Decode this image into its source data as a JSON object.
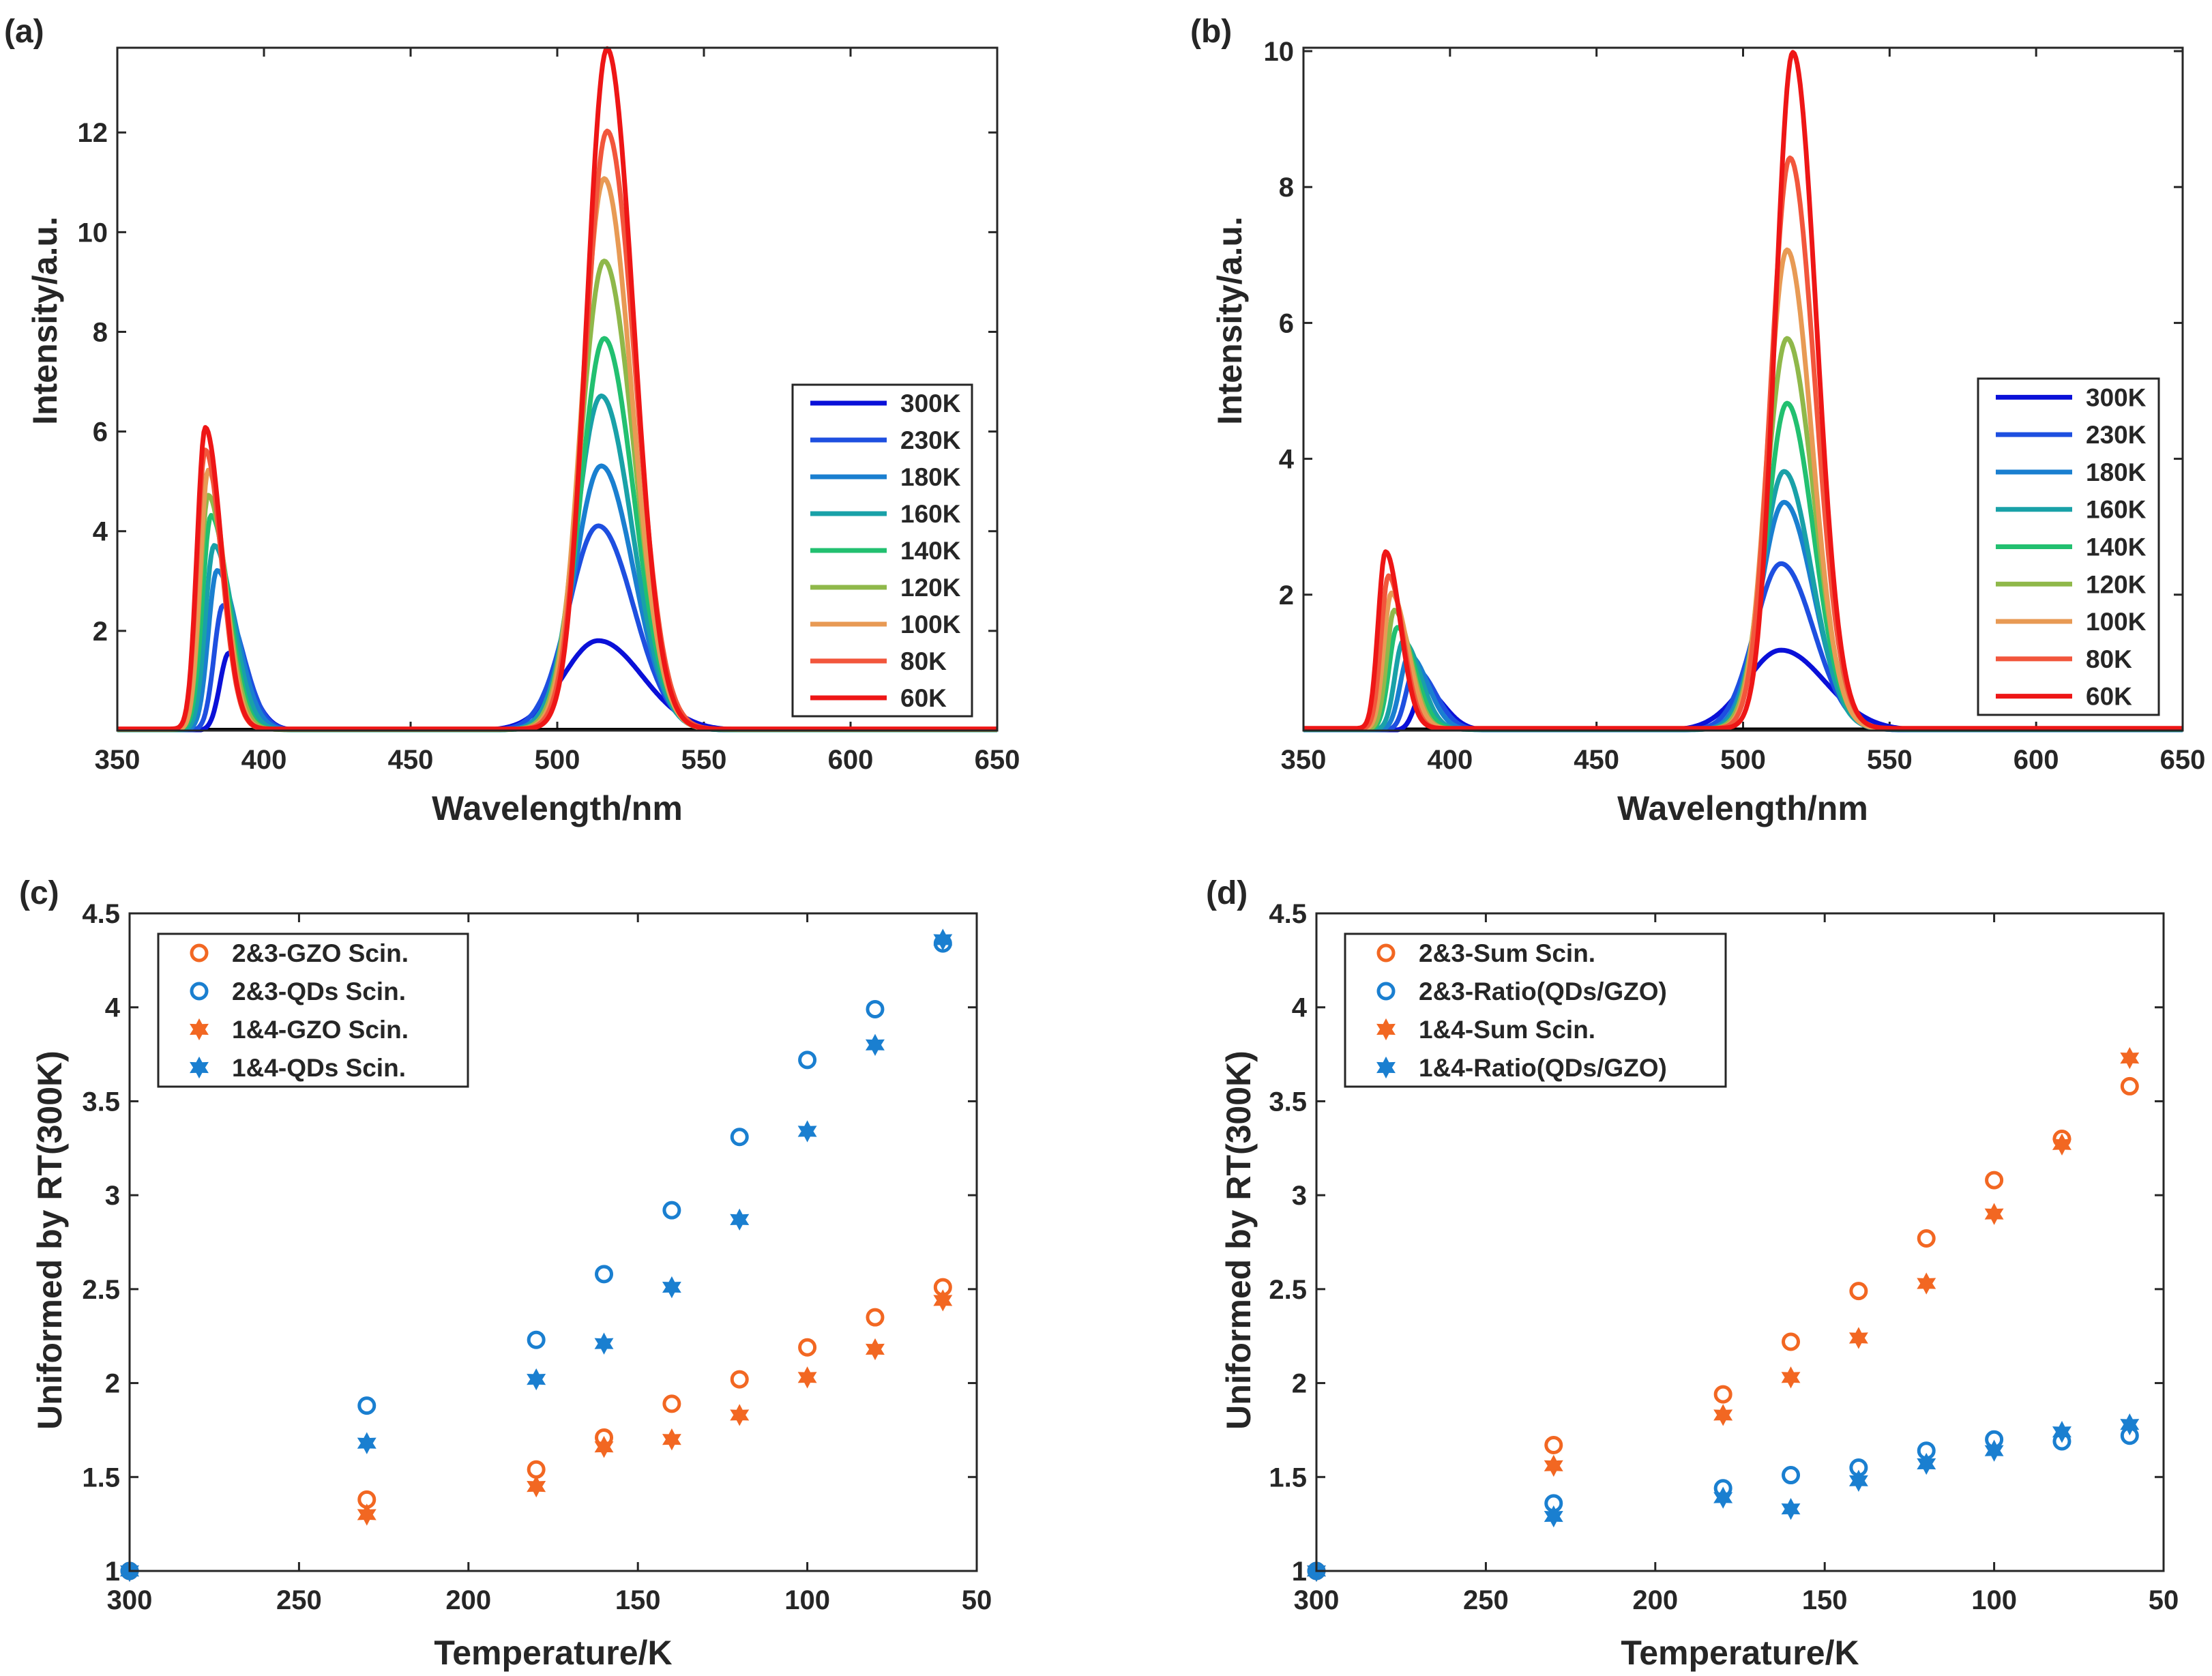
{
  "chart_data": [
    {
      "panel_label": "(a)",
      "type": "line",
      "xlabel": "Wavelength/nm",
      "ylabel": "Intensity/a.u.",
      "xlim": [
        350,
        650
      ],
      "ylim": [
        0,
        13.7
      ],
      "xticks": [
        350,
        400,
        450,
        500,
        550,
        600,
        650
      ],
      "yticks": [
        2,
        4,
        6,
        8,
        10,
        12
      ],
      "legend_position": "right",
      "series": [
        {
          "name": "300K",
          "color": "#0a10d8",
          "p1": {
            "mu": 388,
            "amp": 1.55,
            "sl": 3,
            "sr": 7
          },
          "p2": {
            "mu": 514,
            "amp": 1.8,
            "sl": 12,
            "sr": 15
          }
        },
        {
          "name": "230K",
          "color": "#1e4fe0",
          "p1": {
            "mu": 386,
            "amp": 2.5,
            "sl": 3,
            "sr": 7
          },
          "p2": {
            "mu": 514,
            "amp": 4.1,
            "sl": 10,
            "sr": 12
          }
        },
        {
          "name": "180K",
          "color": "#1a7fd0",
          "p1": {
            "mu": 384,
            "amp": 3.2,
            "sl": 3,
            "sr": 7
          },
          "p2": {
            "mu": 515,
            "amp": 5.3,
            "sl": 9,
            "sr": 11
          }
        },
        {
          "name": "160K",
          "color": "#19a1a8",
          "p1": {
            "mu": 383,
            "amp": 3.7,
            "sl": 3,
            "sr": 6.5
          },
          "p2": {
            "mu": 515,
            "amp": 6.7,
            "sl": 8.5,
            "sr": 10.5
          }
        },
        {
          "name": "140K",
          "color": "#22c070",
          "p1": {
            "mu": 382,
            "amp": 4.3,
            "sl": 3,
            "sr": 6
          },
          "p2": {
            "mu": 516,
            "amp": 7.85,
            "sl": 8,
            "sr": 10
          }
        },
        {
          "name": "120K",
          "color": "#8fb84a",
          "p1": {
            "mu": 381,
            "amp": 4.7,
            "sl": 2.8,
            "sr": 6
          },
          "p2": {
            "mu": 516,
            "amp": 9.4,
            "sl": 8,
            "sr": 10
          }
        },
        {
          "name": "100K",
          "color": "#e89a54",
          "p1": {
            "mu": 381,
            "amp": 5.2,
            "sl": 2.8,
            "sr": 5.5
          },
          "p2": {
            "mu": 516,
            "amp": 11.05,
            "sl": 7.5,
            "sr": 9.5
          }
        },
        {
          "name": "80K",
          "color": "#f2563c",
          "p1": {
            "mu": 380,
            "amp": 5.6,
            "sl": 2.8,
            "sr": 5.5
          },
          "p2": {
            "mu": 517,
            "amp": 12.0,
            "sl": 7.5,
            "sr": 9.5
          }
        },
        {
          "name": "60K",
          "color": "#ee1616",
          "p1": {
            "mu": 380,
            "amp": 6.05,
            "sl": 2.8,
            "sr": 5.5
          },
          "p2": {
            "mu": 517,
            "amp": 13.65,
            "sl": 7,
            "sr": 9
          }
        }
      ]
    },
    {
      "panel_label": "(b)",
      "type": "line",
      "xlabel": "Wavelength/nm",
      "ylabel": "Intensity/a.u.",
      "xlim": [
        350,
        650
      ],
      "ylim": [
        0,
        10.05
      ],
      "xticks": [
        350,
        400,
        450,
        500,
        550,
        600,
        650
      ],
      "yticks": [
        2,
        4,
        6,
        8,
        10
      ],
      "legend_position": "right",
      "series": [
        {
          "name": "300K",
          "color": "#0a10d8",
          "p1": {
            "mu": 391,
            "amp": 0.6,
            "sl": 3,
            "sr": 7
          },
          "p2": {
            "mu": 513,
            "amp": 1.18,
            "sl": 12,
            "sr": 15
          }
        },
        {
          "name": "230K",
          "color": "#1e4fe0",
          "p1": {
            "mu": 388,
            "amp": 0.9,
            "sl": 3,
            "sr": 7
          },
          "p2": {
            "mu": 513,
            "amp": 2.45,
            "sl": 9,
            "sr": 11
          }
        },
        {
          "name": "180K",
          "color": "#1a7fd0",
          "p1": {
            "mu": 386,
            "amp": 1.1,
            "sl": 3,
            "sr": 6.5
          },
          "p2": {
            "mu": 514,
            "amp": 3.35,
            "sl": 8,
            "sr": 10
          }
        },
        {
          "name": "160K",
          "color": "#19a1a8",
          "p1": {
            "mu": 384,
            "amp": 1.3,
            "sl": 2.8,
            "sr": 6
          },
          "p2": {
            "mu": 514,
            "amp": 3.8,
            "sl": 7.5,
            "sr": 9.5
          }
        },
        {
          "name": "140K",
          "color": "#22c070",
          "p1": {
            "mu": 382,
            "amp": 1.5,
            "sl": 2.8,
            "sr": 6
          },
          "p2": {
            "mu": 515,
            "amp": 4.8,
            "sl": 7,
            "sr": 9
          }
        },
        {
          "name": "120K",
          "color": "#8fb84a",
          "p1": {
            "mu": 381,
            "amp": 1.75,
            "sl": 2.6,
            "sr": 5.5
          },
          "p2": {
            "mu": 515,
            "amp": 5.75,
            "sl": 7,
            "sr": 9
          }
        },
        {
          "name": "100K",
          "color": "#e89a54",
          "p1": {
            "mu": 380,
            "amp": 2.0,
            "sl": 2.6,
            "sr": 5.5
          },
          "p2": {
            "mu": 515,
            "amp": 7.05,
            "sl": 6.5,
            "sr": 8.5
          }
        },
        {
          "name": "80K",
          "color": "#f2563c",
          "p1": {
            "mu": 379,
            "amp": 2.25,
            "sl": 2.5,
            "sr": 5
          },
          "p2": {
            "mu": 516,
            "amp": 8.4,
            "sl": 6.5,
            "sr": 8.5
          }
        },
        {
          "name": "60K",
          "color": "#ee1616",
          "p1": {
            "mu": 378,
            "amp": 2.6,
            "sl": 2.5,
            "sr": 5
          },
          "p2": {
            "mu": 517,
            "amp": 9.95,
            "sl": 6,
            "sr": 8
          }
        }
      ]
    },
    {
      "panel_label": "(c)",
      "type": "scatter",
      "xlabel": "Temperature/K",
      "ylabel": "Uniformed by RT(300K)",
      "x_reversed": true,
      "xlim": [
        300,
        50
      ],
      "ylim": [
        1,
        4.5
      ],
      "xticks": [
        300,
        250,
        200,
        150,
        100,
        50
      ],
      "yticks": [
        1,
        1.5,
        2,
        2.5,
        3,
        3.5,
        4,
        4.5
      ],
      "legend_position": "top-left",
      "x": [
        300,
        230,
        180,
        160,
        140,
        120,
        100,
        80,
        60
      ],
      "series": [
        {
          "name": "2&3-GZO Scin.",
          "marker": "circle",
          "color": "#f26722",
          "values": [
            1.0,
            1.38,
            1.54,
            1.71,
            1.89,
            2.02,
            2.19,
            2.35,
            2.51
          ]
        },
        {
          "name": "2&3-QDs Scin.",
          "marker": "circle",
          "color": "#1a7fd0",
          "values": [
            1.0,
            1.88,
            2.23,
            2.58,
            2.92,
            3.31,
            3.72,
            3.99,
            4.34
          ]
        },
        {
          "name": "1&4-GZO Scin.",
          "marker": "star",
          "color": "#f26722",
          "values": [
            1.0,
            1.3,
            1.45,
            1.66,
            1.7,
            1.83,
            2.03,
            2.18,
            2.44
          ]
        },
        {
          "name": "1&4-QDs Scin.",
          "marker": "star",
          "color": "#1a7fd0",
          "values": [
            1.0,
            1.68,
            2.02,
            2.21,
            2.51,
            2.87,
            3.34,
            3.8,
            4.36
          ]
        }
      ]
    },
    {
      "panel_label": "(d)",
      "type": "scatter",
      "xlabel": "Temperature/K",
      "ylabel": "Uniformed by RT(300K)",
      "x_reversed": true,
      "xlim": [
        300,
        50
      ],
      "ylim": [
        1,
        4.5
      ],
      "xticks": [
        300,
        250,
        200,
        150,
        100,
        50
      ],
      "yticks": [
        1,
        1.5,
        2,
        2.5,
        3,
        3.5,
        4,
        4.5
      ],
      "legend_position": "top-left",
      "x": [
        300,
        230,
        180,
        160,
        140,
        120,
        100,
        80,
        60
      ],
      "series": [
        {
          "name": "2&3-Sum Scin.",
          "marker": "circle",
          "color": "#f26722",
          "values": [
            1.0,
            1.67,
            1.94,
            2.22,
            2.49,
            2.77,
            3.08,
            3.3,
            3.58
          ]
        },
        {
          "name": "2&3-Ratio(QDs/GZO)",
          "marker": "circle",
          "color": "#1a7fd0",
          "values": [
            1.0,
            1.36,
            1.44,
            1.51,
            1.55,
            1.64,
            1.7,
            1.69,
            1.72
          ]
        },
        {
          "name": "1&4-Sum Scin.",
          "marker": "star",
          "color": "#f26722",
          "values": [
            1.0,
            1.56,
            1.83,
            2.03,
            2.24,
            2.53,
            2.9,
            3.27,
            3.73
          ]
        },
        {
          "name": "1&4-Ratio(QDs/GZO)",
          "marker": "star",
          "color": "#1a7fd0",
          "values": [
            1.0,
            1.29,
            1.39,
            1.33,
            1.48,
            1.57,
            1.64,
            1.74,
            1.78
          ]
        }
      ]
    }
  ]
}
